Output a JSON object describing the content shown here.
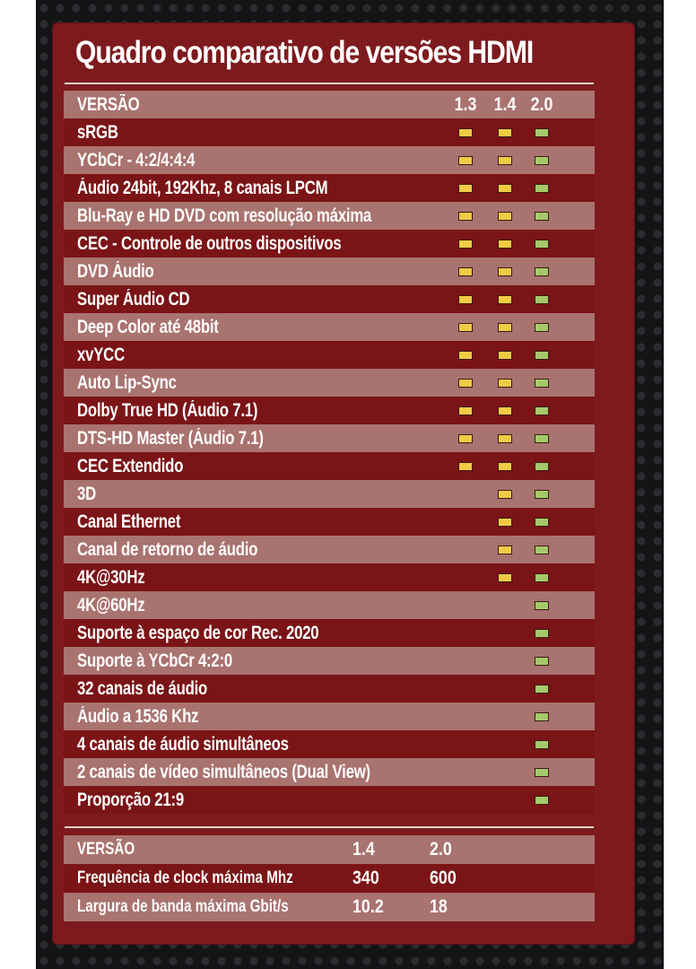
{
  "title": "Quadro comparativo de versões HDMI",
  "colors": {
    "panel": "#7d1a1e",
    "row_light": "#a9736f",
    "row_dark": "#7a1417",
    "marker_yellow": "#f2cb45",
    "marker_green": "#a5c96a"
  },
  "table": {
    "header_label": "VERSÃO",
    "versions": [
      "1.3",
      "1.4",
      "2.0"
    ],
    "rows": [
      {
        "label": "sRGB",
        "v13": true,
        "v14": true,
        "v20": true
      },
      {
        "label": "YCbCr - 4:2/4:4:4",
        "v13": true,
        "v14": true,
        "v20": true
      },
      {
        "label": "Áudio 24bit, 192Khz, 8 canais LPCM",
        "v13": true,
        "v14": true,
        "v20": true
      },
      {
        "label": "Blu-Ray e HD DVD com resolução máxima",
        "v13": true,
        "v14": true,
        "v20": true
      },
      {
        "label": "CEC - Controle de outros dispositivos",
        "v13": true,
        "v14": true,
        "v20": true
      },
      {
        "label": "DVD Áudio",
        "v13": true,
        "v14": true,
        "v20": true
      },
      {
        "label": "Super Áudio CD",
        "v13": true,
        "v14": true,
        "v20": true
      },
      {
        "label": "Deep Color até 48bit",
        "v13": true,
        "v14": true,
        "v20": true
      },
      {
        "label": "xvYCC",
        "v13": true,
        "v14": true,
        "v20": true
      },
      {
        "label": "Auto Lip-Sync",
        "v13": true,
        "v14": true,
        "v20": true
      },
      {
        "label": "Dolby True HD (Áudio 7.1)",
        "v13": true,
        "v14": true,
        "v20": true
      },
      {
        "label": "DTS-HD Master (Áudio 7.1)",
        "v13": true,
        "v14": true,
        "v20": true
      },
      {
        "label": "CEC Extendido",
        "v13": true,
        "v14": true,
        "v20": true
      },
      {
        "label": "3D",
        "v13": false,
        "v14": true,
        "v20": true
      },
      {
        "label": "Canal Ethernet",
        "v13": false,
        "v14": true,
        "v20": true
      },
      {
        "label": "Canal de retorno de áudio",
        "v13": false,
        "v14": true,
        "v20": true
      },
      {
        "label": "4K@30Hz",
        "v13": false,
        "v14": true,
        "v20": true
      },
      {
        "label": "4K@60Hz",
        "v13": false,
        "v14": false,
        "v20": true
      },
      {
        "label": "Suporte à espaço de cor Rec. 2020",
        "v13": false,
        "v14": false,
        "v20": true
      },
      {
        "label": "Suporte à YCbCr 4:2:0",
        "v13": false,
        "v14": false,
        "v20": true
      },
      {
        "label": "32 canais de áudio",
        "v13": false,
        "v14": false,
        "v20": true
      },
      {
        "label": "Áudio a 1536 Khz",
        "v13": false,
        "v14": false,
        "v20": true
      },
      {
        "label": "4 canais de áudio simultâneos",
        "v13": false,
        "v14": false,
        "v20": true
      },
      {
        "label": "2 canais de vídeo simultâneos (Dual View)",
        "v13": false,
        "v14": false,
        "v20": true
      },
      {
        "label": "Proporção 21:9",
        "v13": false,
        "v14": false,
        "v20": true
      }
    ]
  },
  "specs": {
    "header_label": "VERSÃO",
    "versions": [
      "1.4",
      "2.0"
    ],
    "rows": [
      {
        "label": "Frequência de clock máxima Mhz",
        "v14": "340",
        "v20": "600"
      },
      {
        "label": "Largura de banda máxima Gbit/s",
        "v14": "10.2",
        "v20": "18"
      }
    ]
  }
}
